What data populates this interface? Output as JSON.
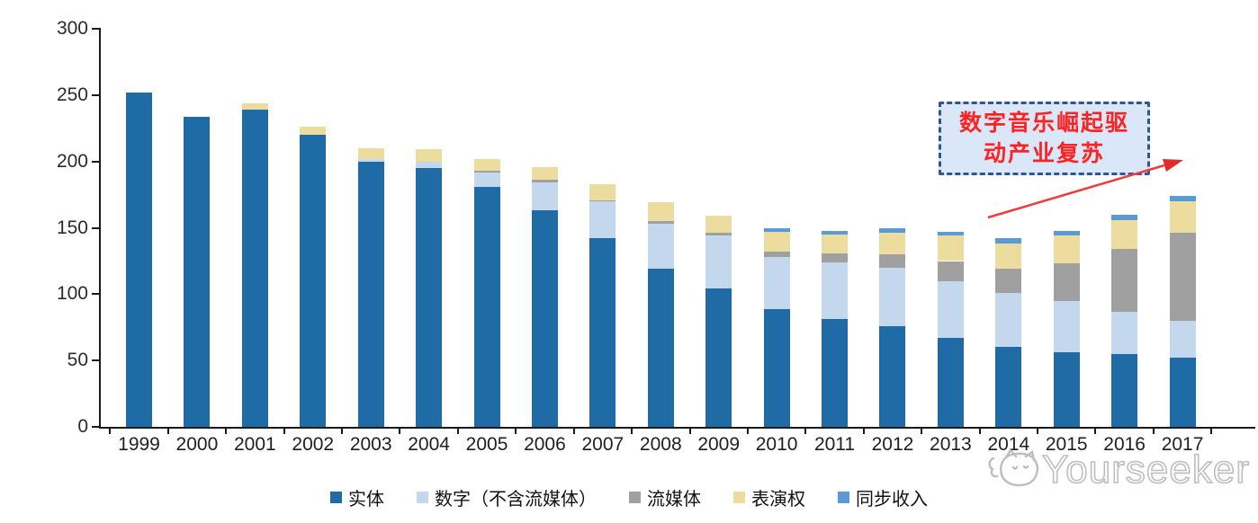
{
  "chart_data": {
    "type": "bar",
    "stacked": true,
    "categories": [
      "1999",
      "2000",
      "2001",
      "2002",
      "2003",
      "2004",
      "2005",
      "2006",
      "2007",
      "2008",
      "2009",
      "2010",
      "2011",
      "2012",
      "2013",
      "2014",
      "2015",
      "2016",
      "2017"
    ],
    "series": [
      {
        "name": "实体",
        "color": "#1F6BA5",
        "values": [
          252,
          234,
          239,
          220,
          200,
          195,
          181,
          163,
          142,
          119,
          104,
          89,
          81,
          76,
          67,
          60,
          56,
          55,
          52
        ]
      },
      {
        "name": "数字（不含流媒体）",
        "color": "#C3D7ED",
        "values": [
          0,
          0,
          0,
          0,
          2,
          5,
          11,
          21,
          28,
          34,
          40,
          39,
          43,
          44,
          43,
          41,
          39,
          32,
          28
        ]
      },
      {
        "name": "流媒体",
        "color": "#A0A0A0",
        "values": [
          0,
          0,
          0,
          0,
          0,
          0,
          1,
          2,
          1,
          2,
          2,
          4,
          7,
          10,
          15,
          18,
          28,
          47,
          66
        ]
      },
      {
        "name": "表演权",
        "color": "#ECDC9E",
        "values": [
          0,
          0,
          5,
          6,
          8,
          9,
          9,
          10,
          12,
          14,
          13,
          15,
          14,
          16,
          19,
          19,
          21,
          22,
          24
        ]
      },
      {
        "name": "同步收入",
        "color": "#5B9BD5",
        "values": [
          0,
          0,
          0,
          0,
          0,
          0,
          0,
          0,
          0,
          0,
          0,
          3,
          3,
          4,
          3,
          4,
          4,
          4,
          4
        ]
      }
    ],
    "ylim": [
      0,
      300
    ],
    "yticks": [
      0,
      50,
      100,
      150,
      200,
      250,
      300
    ],
    "grid": false,
    "legend_position": "bottom"
  },
  "annotation": {
    "lines": [
      "数字音乐崛起驱",
      "动产业复苏"
    ],
    "text_color": "#FF2222",
    "box_fill": "#D9E7F8",
    "box_border": "#2E5597",
    "arrow_color": "#F03B3B"
  },
  "watermark": {
    "text": "Yourseeker",
    "logo": "cat-face-icon",
    "color": "#B3B3B3"
  }
}
